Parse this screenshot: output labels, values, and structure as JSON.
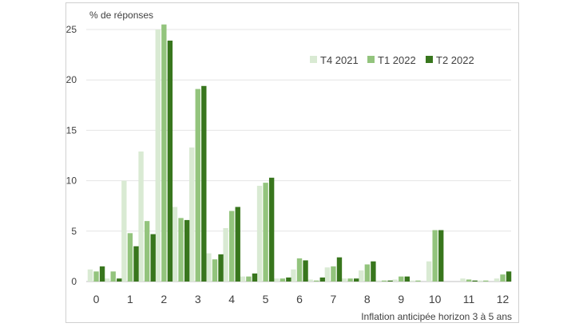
{
  "chart_data": {
    "type": "bar",
    "ylabel": "% de réponses",
    "xlabel": "Inflation anticipée horizon 3 à 5 ans",
    "ylim": [
      0,
      25
    ],
    "yticks": [
      0,
      5,
      10,
      15,
      20,
      25
    ],
    "grid": true,
    "legend_position": "top-right",
    "x_tick_labels": [
      "0",
      "1",
      "2",
      "3",
      "4",
      "5",
      "6",
      "7",
      "8",
      "9",
      "10",
      "11",
      "12"
    ],
    "categories": [
      "0",
      "0.5",
      "1",
      "1.5",
      "2",
      "2.5",
      "3",
      "3.5",
      "4",
      "4.5",
      "5",
      "5.5",
      "6",
      "6.5",
      "7",
      "7.5",
      "8",
      "8.5",
      "9",
      "9.5",
      "10",
      "10.5",
      "11",
      "11.5",
      "12"
    ],
    "series": [
      {
        "name": "T4 2021",
        "color": "#d9ead3",
        "values": [
          1.2,
          0.3,
          10.0,
          12.9,
          25.0,
          7.4,
          13.3,
          2.8,
          5.3,
          0.5,
          9.5,
          0.3,
          1.2,
          0.2,
          1.4,
          0.3,
          1.1,
          0.1,
          0.2,
          0.1,
          2.0,
          0,
          0.3,
          0.1,
          0.3
        ]
      },
      {
        "name": "T1 2022",
        "color": "#93c47d",
        "values": [
          1.0,
          1.0,
          4.8,
          6.0,
          25.5,
          6.3,
          19.1,
          2.2,
          7.0,
          0.5,
          9.8,
          0.3,
          2.3,
          0.1,
          1.5,
          0.3,
          1.7,
          0.1,
          0.5,
          0.1,
          5.1,
          0,
          0.2,
          0.1,
          0.7
        ]
      },
      {
        "name": "T2 2022",
        "color": "#38761d",
        "values": [
          1.5,
          0.3,
          3.5,
          4.7,
          23.9,
          6.1,
          19.4,
          2.7,
          7.4,
          0.8,
          10.3,
          0.4,
          2.1,
          0.4,
          2.4,
          0.3,
          2.0,
          0.1,
          0.5,
          0,
          5.1,
          0,
          0.1,
          0,
          1.0
        ]
      }
    ]
  }
}
